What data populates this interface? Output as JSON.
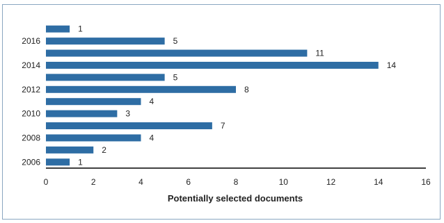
{
  "chart_data": {
    "type": "bar",
    "orientation": "horizontal",
    "categories": [
      "2006",
      "2007",
      "2008",
      "2009",
      "2010",
      "2011",
      "2012",
      "2013",
      "2014",
      "2015",
      "2016",
      "2017"
    ],
    "category_labels": [
      "2006",
      "",
      "2008",
      "",
      "2010",
      "",
      "2012",
      "",
      "2014",
      "",
      "2016",
      ""
    ],
    "values": [
      1,
      2,
      4,
      7,
      3,
      4,
      8,
      5,
      14,
      11,
      5,
      1
    ],
    "title": "",
    "xlabel": "Potentially selected documents",
    "ylabel": "",
    "xlim": [
      0,
      16
    ],
    "xticks": [
      0,
      2,
      4,
      6,
      8,
      10,
      12,
      14,
      16
    ],
    "grid": false,
    "legend": "none",
    "bar_color": "#2e6da4"
  }
}
